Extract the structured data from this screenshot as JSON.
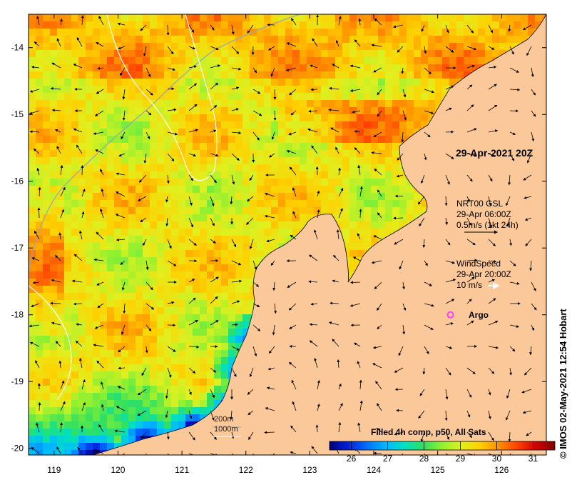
{
  "map": {
    "lon_range": [
      118.6,
      126.7
    ],
    "lat_range": [
      -20.1,
      -13.5
    ],
    "x_ticks": [
      119,
      120,
      121,
      122,
      123,
      124,
      125,
      126
    ],
    "y_ticks": [
      -14,
      -15,
      -16,
      -17,
      -18,
      -19,
      -20
    ],
    "land_color": "#fbc89a",
    "grid_lines": false
  },
  "annotations": {
    "date_label": "29-Apr-2021 20Z",
    "gsl_title": "NRT00 GSL",
    "gsl_time": "29-Apr 06:00Z",
    "gsl_scale": "0.5m/s (1kt 24h)",
    "wind_title": "WindSpeed",
    "wind_time": "29-Apr 20:00Z",
    "wind_scale": "10 m/s",
    "argo_label": "Argo",
    "depth_200": "200m",
    "depth_1000": "1000m"
  },
  "colorbar": {
    "title": "Filled 4h comp, p50, All Sats",
    "min": 25.4,
    "max": 31.6,
    "tick_values": [
      26,
      27,
      28,
      29,
      30,
      31
    ],
    "tick_labels": [
      "26",
      "27",
      "28",
      "29",
      "30",
      "31"
    ],
    "colors": [
      "#00007a",
      "#0020e0",
      "#0070ff",
      "#00b8ff",
      "#00e0c0",
      "#30e060",
      "#90f030",
      "#e0f020",
      "#ffd000",
      "#ff9000",
      "#ff4000",
      "#d00000",
      "#800000"
    ]
  },
  "argo_float": {
    "lon": 125.2,
    "lat": -18.0,
    "color": "#ff40ff"
  },
  "credit": "© IMOS 02-May-2021 12:54 Hobart"
}
